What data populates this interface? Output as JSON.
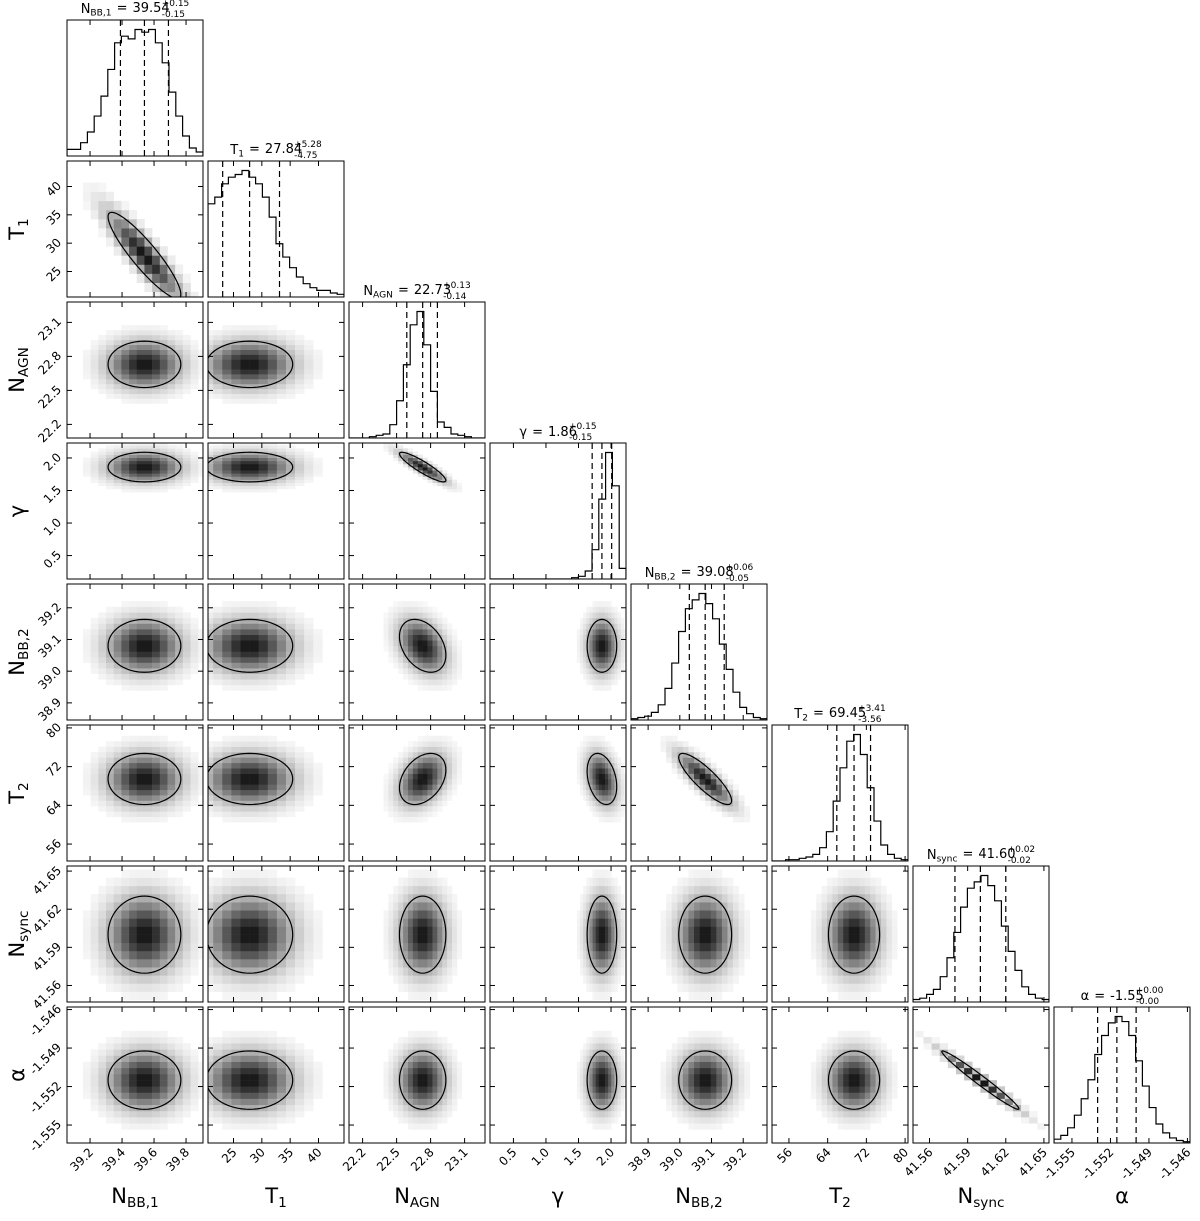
{
  "chart_data": {
    "type": "corner",
    "equals": "=",
    "params": [
      {
        "symbol": "N",
        "sub": "BB,1",
        "median": 39.54,
        "plus": {
          "value": 0.15,
          "label": "+0.15"
        },
        "minus": {
          "value": 0.15,
          "label": "-0.15"
        },
        "lim": [
          39.056,
          39.906
        ],
        "ticks": [
          39.2,
          39.4,
          39.6,
          39.8
        ],
        "counts": [
          5,
          5,
          10,
          18,
          30,
          45,
          65,
          85,
          90,
          88,
          95,
          93,
          95,
          85,
          70,
          48,
          30,
          15,
          6,
          3
        ]
      },
      {
        "symbol": "T",
        "sub": "1",
        "median": 27.84,
        "plus": {
          "value": 5.28,
          "label": "+5.28"
        },
        "minus": {
          "value": 4.75,
          "label": "-4.75"
        },
        "lim": [
          20.5,
          44.5
        ],
        "ticks": [
          25,
          30,
          35,
          40
        ],
        "counts": [
          70,
          75,
          85,
          90,
          92,
          95,
          90,
          85,
          75,
          60,
          40,
          30,
          22,
          15,
          10,
          7,
          5,
          5,
          3,
          2
        ]
      },
      {
        "symbol": "N",
        "sub": "AGN",
        "median": 22.73,
        "plus": {
          "value": 0.13,
          "label": "+0.13"
        },
        "minus": {
          "value": 0.14,
          "label": "-0.14"
        },
        "lim": [
          22.08,
          23.28
        ],
        "ticks": [
          22.2,
          22.5,
          22.8,
          23.1
        ],
        "counts": [
          0,
          0,
          0,
          1,
          2,
          3,
          10,
          28,
          55,
          85,
          95,
          70,
          35,
          12,
          8,
          3,
          2,
          1,
          0,
          0
        ]
      },
      {
        "symbol": "γ",
        "median": 1.86,
        "plus": {
          "value": 0.15,
          "label": "+0.15"
        },
        "minus": {
          "value": 0.15,
          "label": "-0.15"
        },
        "lim": [
          0.14,
          2.23
        ],
        "ticks": [
          0.5,
          {
            "value": 1,
            "label": "1.0"
          },
          1.5,
          {
            "value": 2,
            "label": "2.0"
          }
        ],
        "counts": [
          0,
          0,
          0,
          0,
          0,
          0,
          0,
          0,
          0,
          0,
          0,
          0,
          1,
          2,
          6,
          22,
          60,
          95,
          70,
          8
        ]
      },
      {
        "symbol": "N",
        "sub": "BB,2",
        "median": 39.08,
        "plus": {
          "value": 0.06,
          "label": "+0.06"
        },
        "minus": {
          "value": 0.05,
          "label": "-0.05"
        },
        "lim": [
          38.846,
          39.275
        ],
        "ticks": [
          38.9,
          {
            "value": 39,
            "label": "39.0"
          },
          39.1,
          39.2
        ],
        "counts": [
          1,
          2,
          3,
          6,
          12,
          25,
          45,
          70,
          88,
          95,
          100,
          92,
          80,
          60,
          40,
          22,
          10,
          5,
          2,
          1
        ]
      },
      {
        "symbol": "T",
        "sub": "2",
        "median": 69.45,
        "plus": {
          "value": 3.41,
          "label": "+3.41"
        },
        "minus": {
          "value": 3.56,
          "label": "-3.56"
        },
        "lim": [
          52.5,
          80.6
        ],
        "ticks": [
          56,
          64,
          72,
          80
        ],
        "counts": [
          0,
          0,
          1,
          1,
          2,
          3,
          5,
          10,
          22,
          45,
          70,
          90,
          95,
          80,
          55,
          30,
          12,
          5,
          2,
          1
        ]
      },
      {
        "symbol": "N",
        "sub": "sync",
        "median": {
          "value": 41.6,
          "label": "41.60"
        },
        "plus": {
          "value": 0.02,
          "label": "+0.02"
        },
        "minus": {
          "value": 0.02,
          "label": "-0.02"
        },
        "lim": [
          41.547,
          41.654
        ],
        "ticks": [
          41.56,
          41.59,
          41.62,
          41.65
        ],
        "counts": [
          2,
          3,
          6,
          10,
          20,
          35,
          55,
          75,
          90,
          95,
          100,
          92,
          80,
          60,
          40,
          25,
          12,
          6,
          3,
          2
        ]
      },
      {
        "symbol": "α",
        "median": {
          "value": -1.5515,
          "label": "-1.55"
        },
        "plus": {
          "value": 0.0015,
          "label": "+0.00"
        },
        "minus": {
          "value": 0.0015,
          "label": "-0.00"
        },
        "lim": [
          -1.5564,
          -1.5458
        ],
        "ticks": [
          -1.555,
          -1.552,
          -1.549,
          -1.546
        ],
        "counts": [
          3,
          6,
          12,
          22,
          35,
          50,
          70,
          85,
          95,
          100,
          96,
          85,
          65,
          45,
          28,
          15,
          8,
          4,
          2,
          1
        ]
      }
    ],
    "correlation": [
      [],
      [
        -0.9
      ],
      [
        0,
        0
      ],
      [
        0,
        0,
        -0.9
      ],
      [
        0,
        0,
        -0.35,
        0
      ],
      [
        0,
        0,
        0.35,
        -0.3,
        -0.85
      ],
      [
        0,
        0,
        0,
        0,
        0,
        0
      ],
      [
        0,
        0,
        0,
        0,
        0,
        0,
        -0.98
      ]
    ]
  }
}
